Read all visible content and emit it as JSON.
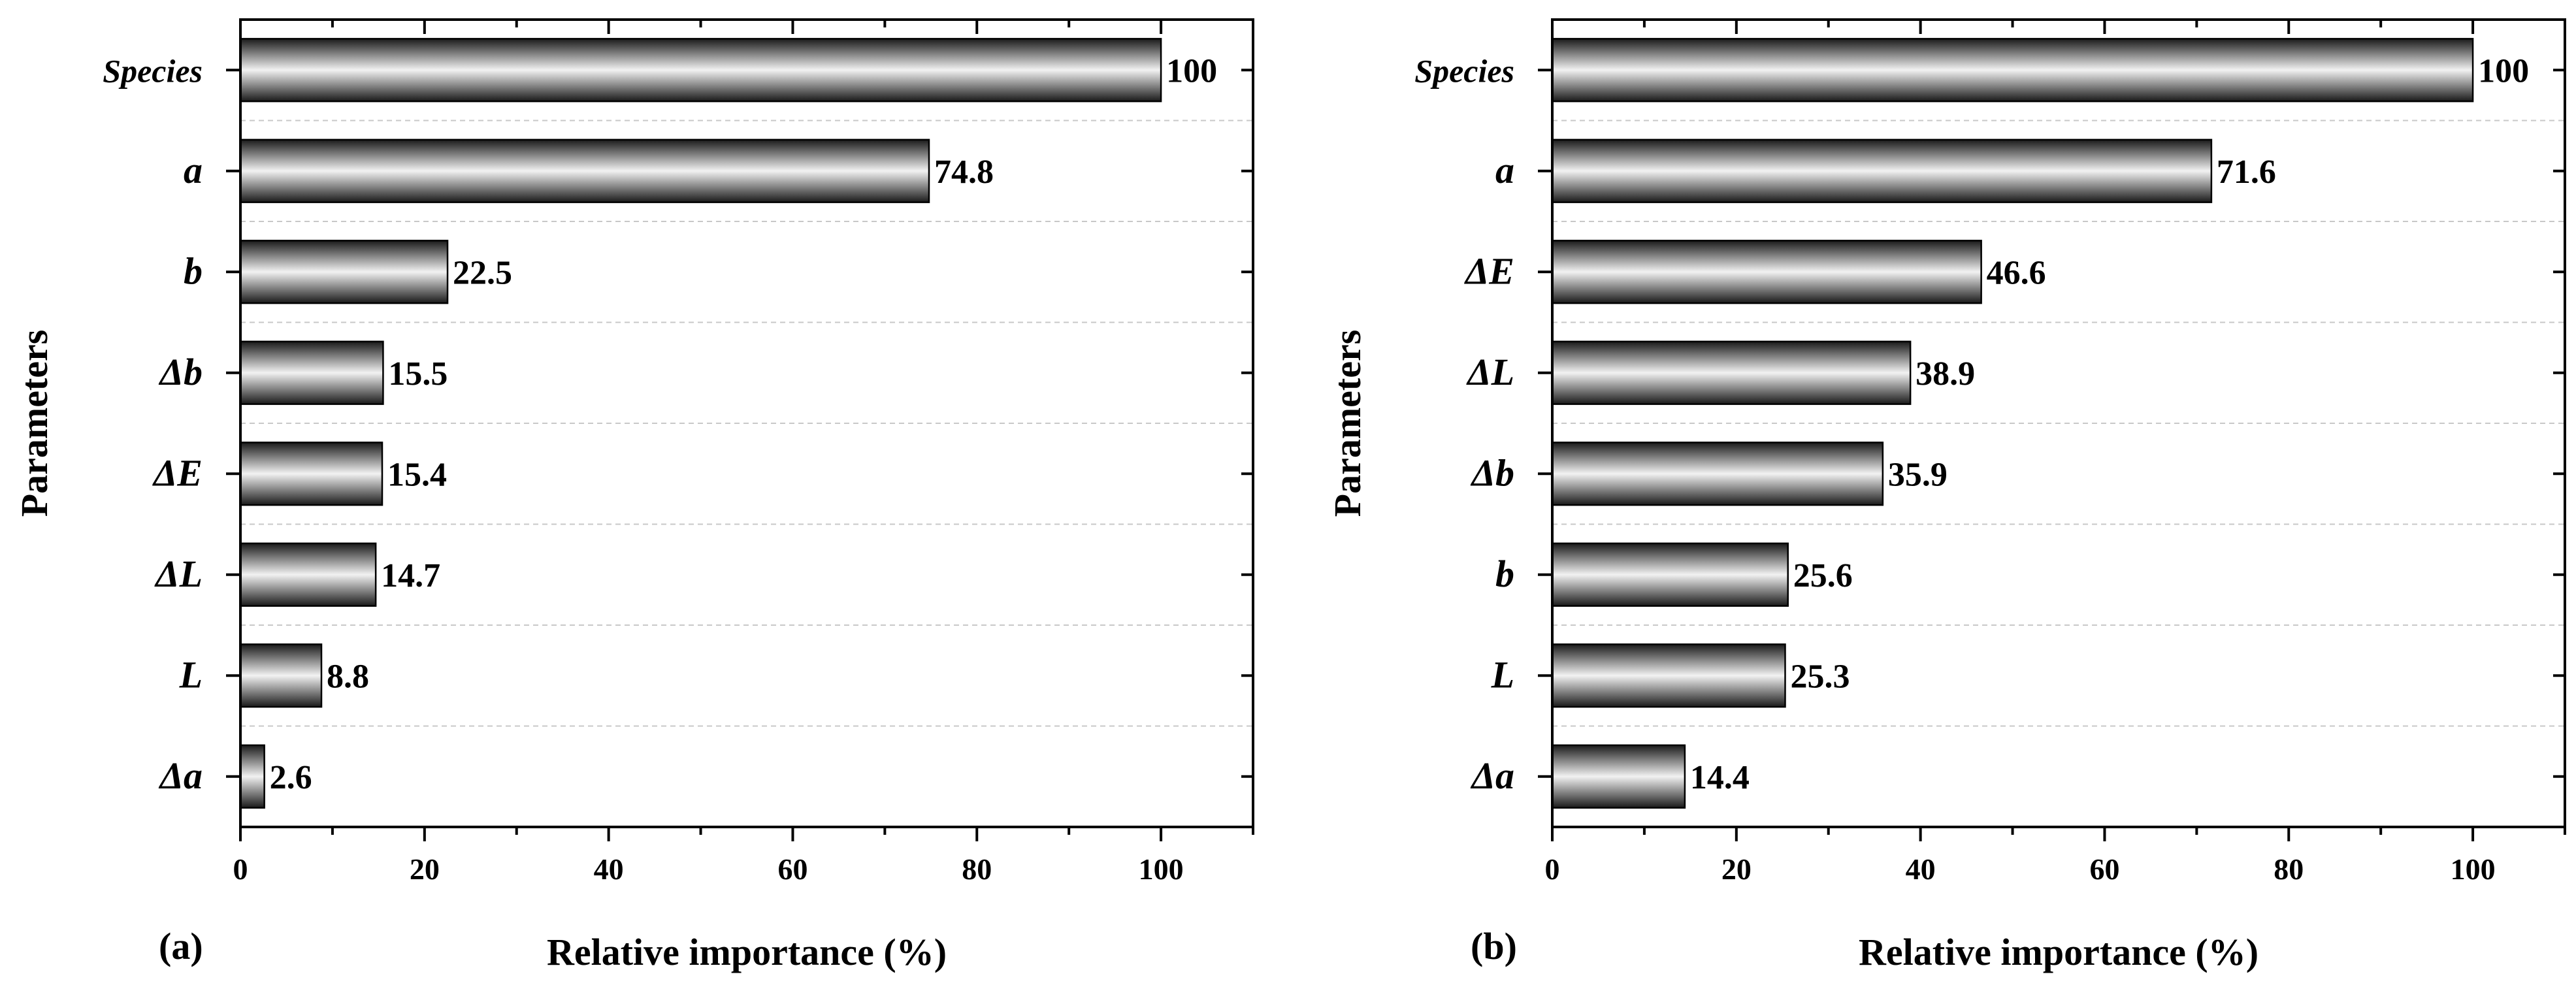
{
  "colors": {
    "bar_dark": "#1a1a1a",
    "bar_light": "#f0f0f0",
    "gridline": "#c8c8c8",
    "axis": "#000000"
  },
  "chart_data": [
    {
      "type": "bar",
      "orientation": "horizontal",
      "panel_label": "(a)",
      "xlabel": "Relative importance (%)",
      "ylabel": "Parameters",
      "xlim": [
        0,
        110
      ],
      "xticks": [
        0,
        20,
        40,
        60,
        80,
        100
      ],
      "categories": [
        "Species",
        "a",
        "b",
        "Δb",
        "ΔE",
        "ΔL",
        "L",
        "Δa"
      ],
      "values": [
        100,
        74.8,
        22.5,
        15.5,
        15.4,
        14.7,
        8.8,
        2.6
      ],
      "value_labels": [
        "100",
        "74.8",
        "22.5",
        "15.5",
        "15.4",
        "14.7",
        "8.8",
        "2.6"
      ],
      "grid": "horizontal dashed between categories"
    },
    {
      "type": "bar",
      "orientation": "horizontal",
      "panel_label": "(b)",
      "xlabel": "Relative importance (%)",
      "ylabel": "Parameters",
      "xlim": [
        0,
        110
      ],
      "xticks": [
        0,
        20,
        40,
        60,
        80,
        100
      ],
      "categories": [
        "Species",
        "a",
        "ΔE",
        "ΔL",
        "Δb",
        "b",
        "L",
        "Δa"
      ],
      "values": [
        100,
        71.6,
        46.6,
        38.9,
        35.9,
        25.6,
        25.3,
        14.4
      ],
      "value_labels": [
        "100",
        "71.6",
        "46.6",
        "38.9",
        "35.9",
        "25.6",
        "25.3",
        "14.4"
      ],
      "grid": "horizontal dashed between categories"
    }
  ]
}
